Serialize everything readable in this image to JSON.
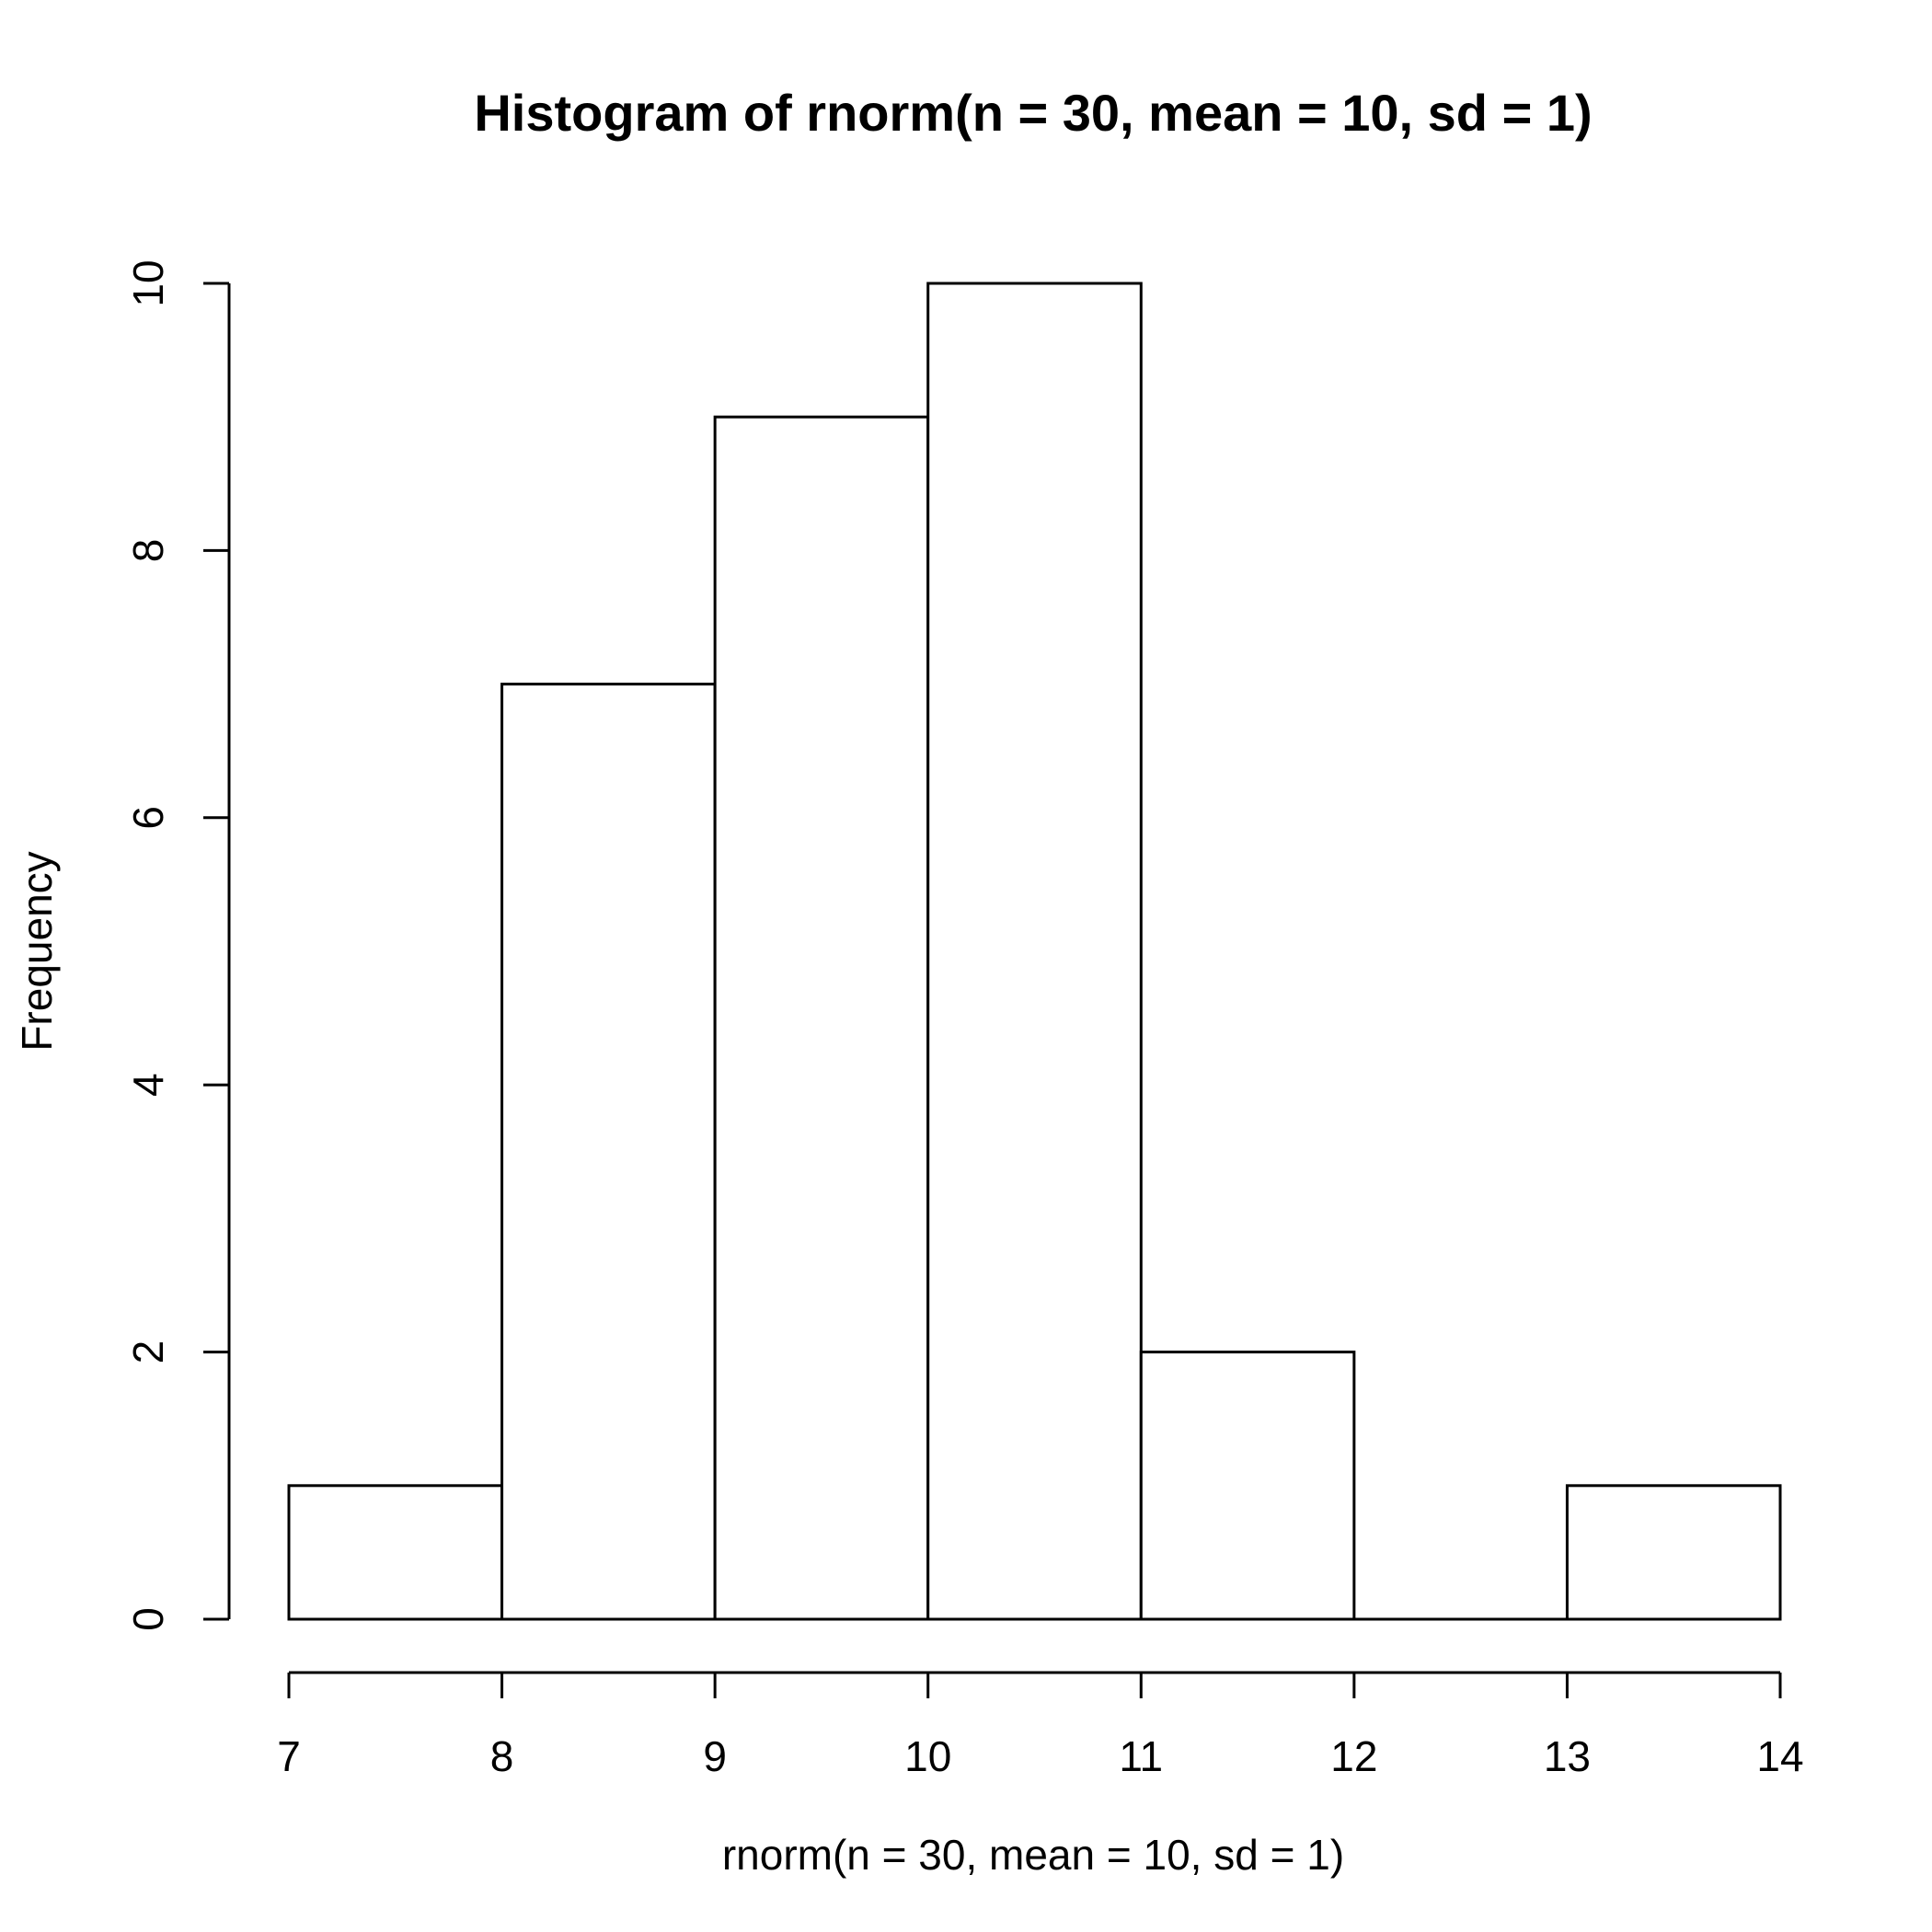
{
  "chart_data": {
    "type": "bar",
    "title": "Histogram of rnorm(n = 30, mean = 10, sd = 1)",
    "xlabel": "rnorm(n = 30, mean = 10, sd = 1)",
    "ylabel": "Frequency",
    "bins": [
      {
        "from": 7,
        "to": 8,
        "count": 1
      },
      {
        "from": 8,
        "to": 9,
        "count": 7
      },
      {
        "from": 9,
        "to": 10,
        "count": 9
      },
      {
        "from": 10,
        "to": 11,
        "count": 10
      },
      {
        "from": 11,
        "to": 12,
        "count": 2
      },
      {
        "from": 12,
        "to": 13,
        "count": 0
      },
      {
        "from": 13,
        "to": 14,
        "count": 1
      }
    ],
    "xlim": [
      7,
      14
    ],
    "ylim": [
      0,
      10
    ],
    "xticks": [
      "7",
      "8",
      "9",
      "10",
      "11",
      "12",
      "13",
      "14"
    ],
    "yticks": [
      "0",
      "2",
      "4",
      "6",
      "8",
      "10"
    ],
    "grid": false,
    "legend": "none"
  }
}
